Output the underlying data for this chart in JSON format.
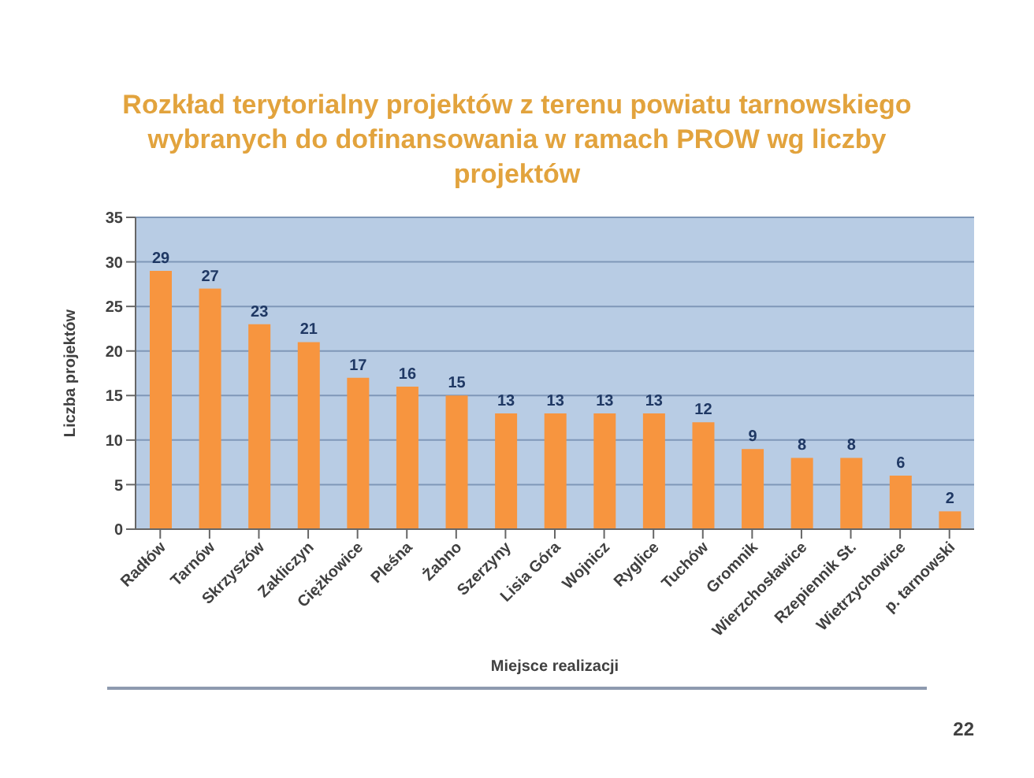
{
  "chart_data": {
    "type": "bar",
    "title": "Rozkład terytorialny projektów z terenu powiatu tarnowskiego wybranych do dofinansowania w ramach PROW wg liczby projektów",
    "xlabel": "Miejsce realizacji",
    "ylabel": "Liczba projektów",
    "categories": [
      "Radłów",
      "Tarnów",
      "Skrzyszów",
      "Zakliczyn",
      "Ciężkowice",
      "Pleśna",
      "Żabno",
      "Szerzyny",
      "Lisia Góra",
      "Wojnicz",
      "Ryglice",
      "Tuchów",
      "Gromnik",
      "Wierzchosławice",
      "Rzepiennik St.",
      "Wietrzychowice",
      "p. tarnowski"
    ],
    "values": [
      29,
      27,
      23,
      21,
      17,
      16,
      15,
      13,
      13,
      13,
      13,
      12,
      9,
      8,
      8,
      6,
      2
    ],
    "color": "#f7953f",
    "ylim": [
      0,
      35
    ],
    "yticks": [
      0,
      5,
      10,
      15,
      20,
      25,
      30,
      35
    ],
    "grid": "y",
    "data_labels": true,
    "annotations": [
      "22"
    ]
  }
}
